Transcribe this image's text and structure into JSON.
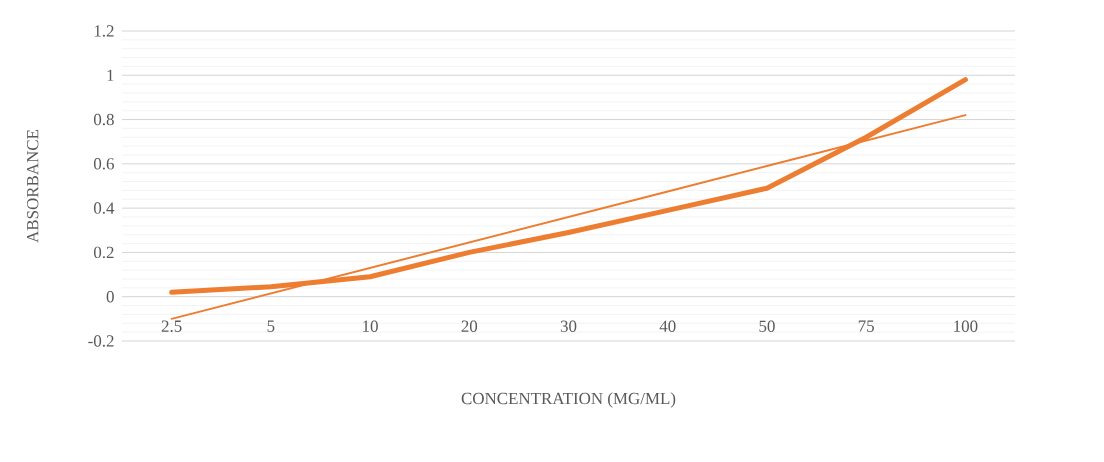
{
  "chart_data": {
    "type": "line",
    "xlabel": "CONCENTRATION (MG/ML)",
    "ylabel": "ABSORBANCE",
    "categories": [
      "2.5",
      "5",
      "10",
      "20",
      "30",
      "40",
      "50",
      "75",
      "100"
    ],
    "series": [
      {
        "color": "#ed7d31",
        "values": [
          0.02,
          0.045,
          0.09,
          0.2,
          0.29,
          0.39,
          0.49,
          0.72,
          0.98
        ]
      },
      {
        "type": "line",
        "color": "#ed7d31",
        "line_style": "solid",
        "values": [
          -0.1,
          0.015,
          0.13,
          0.245,
          0.36,
          0.475,
          0.59,
          0.705,
          0.82
        ]
      }
    ],
    "ylim": [
      -0.2,
      1.2
    ],
    "yticks": [
      -0.2,
      0,
      0.2,
      0.4,
      0.6,
      0.8,
      1,
      1.2
    ],
    "grid": "y"
  }
}
